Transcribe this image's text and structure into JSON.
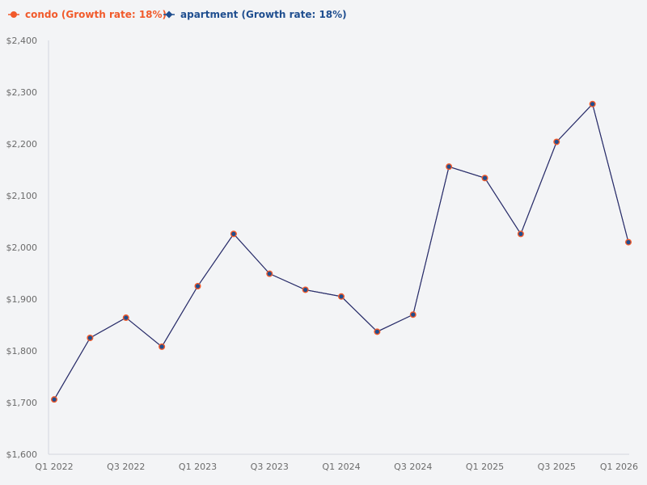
{
  "chart_data": {
    "type": "line",
    "title": "",
    "xlabel": "",
    "ylabel": "",
    "x": [
      "Q1 2022",
      "Q2 2022",
      "Q3 2022",
      "Q4 2022",
      "Q1 2023",
      "Q2 2023",
      "Q3 2023",
      "Q4 2023",
      "Q1 2024",
      "Q2 2024",
      "Q3 2024",
      "Q4 2024",
      "Q1 2025",
      "Q2 2025",
      "Q3 2025",
      "Q4 2025",
      "Q1 2026"
    ],
    "x_tick_labels": [
      "Q1 2022",
      "Q3 2022",
      "Q1 2023",
      "Q3 2023",
      "Q1 2024",
      "Q3 2024",
      "Q1 2025",
      "Q3 2025",
      "Q1 2026"
    ],
    "ylim": [
      1600,
      2400
    ],
    "y_ticks": [
      1600,
      1700,
      1800,
      1900,
      2000,
      2100,
      2200,
      2300,
      2400
    ],
    "y_tick_labels": [
      "$1,600",
      "$1,700",
      "$1,800",
      "$1,900",
      "$2,000",
      "$2,100",
      "$2,200",
      "$2,300",
      "$2,400"
    ],
    "grid": false,
    "legend_position": "top-left",
    "series": [
      {
        "name": "condo (Growth rate: 18%)",
        "color": "#f15a2b",
        "marker": "circle",
        "values": [
          1706,
          1825,
          1864,
          1808,
          1925,
          2026,
          1949,
          1918,
          1905,
          1837,
          1870,
          2156,
          2134,
          2026,
          2204,
          2277,
          2010
        ]
      },
      {
        "name": "apartment (Growth rate: 18%)",
        "color": "#1f4e8f",
        "marker": "diamond",
        "values": [
          1706,
          1825,
          1864,
          1808,
          1925,
          2026,
          1949,
          1918,
          1905,
          1837,
          1870,
          2156,
          2134,
          2026,
          2204,
          2277,
          2010
        ]
      }
    ],
    "line_color": "#2b2f6b"
  }
}
